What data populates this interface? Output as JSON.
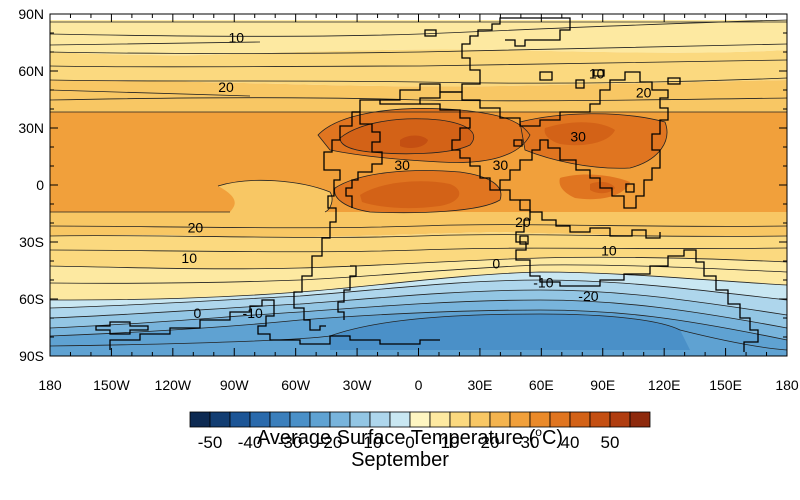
{
  "map": {
    "x_ticks": [
      "180",
      "150W",
      "120W",
      "90W",
      "60W",
      "30W",
      "0",
      "30E",
      "60E",
      "90E",
      "120E",
      "150E",
      "180"
    ],
    "y_ticks": [
      "90N",
      "60N",
      "30N",
      "0",
      "30S",
      "60S",
      "90S"
    ],
    "contour_labels": [
      {
        "text": "10",
        "lon": -89,
        "lat": 75
      },
      {
        "text": "20",
        "lon": -94,
        "lat": 49
      },
      {
        "text": "30",
        "lon": -8,
        "lat": 8
      },
      {
        "text": "30",
        "lon": 40,
        "lat": 8
      },
      {
        "text": "30",
        "lon": 78,
        "lat": 23
      },
      {
        "text": "10",
        "lon": 87,
        "lat": 56
      },
      {
        "text": "20",
        "lon": 110,
        "lat": 46
      },
      {
        "text": "20",
        "lon": -109,
        "lat": -25
      },
      {
        "text": "10",
        "lon": -112,
        "lat": -41
      },
      {
        "text": "20",
        "lon": 51,
        "lat": -22
      },
      {
        "text": "10",
        "lon": 93,
        "lat": -37
      },
      {
        "text": "0",
        "lon": 38,
        "lat": -44
      },
      {
        "text": "-10",
        "lon": 61,
        "lat": -54
      },
      {
        "text": "-20",
        "lon": 83,
        "lat": -61
      },
      {
        "text": "0",
        "lon": -108,
        "lat": -70
      },
      {
        "text": "-10",
        "lon": -81,
        "lat": -70
      }
    ]
  },
  "colorbar": {
    "levels": [
      -55,
      -50,
      -45,
      -40,
      -35,
      -30,
      -25,
      -20,
      -15,
      -10,
      -5,
      0,
      5,
      10,
      15,
      20,
      25,
      30,
      35,
      40,
      45,
      50,
      55
    ],
    "colors": [
      "#0d2a52",
      "#123d72",
      "#1c5596",
      "#2a6aac",
      "#3b7fbc",
      "#4a90c8",
      "#5fa2d2",
      "#78b4dc",
      "#93c6e4",
      "#aed6ec",
      "#c9e7f2",
      "#fff6c2",
      "#fde9a1",
      "#fbd97f",
      "#f8c764",
      "#f4b44f",
      "#f1a03b",
      "#ea8a2a",
      "#e07520",
      "#d36217",
      "#c44f12",
      "#b03d10",
      "#8e2a0d"
    ],
    "tick_labels": [
      "-50",
      "-40",
      "-30",
      "-20",
      "-10",
      "0",
      "10",
      "20",
      "30",
      "40",
      "50"
    ]
  },
  "title": {
    "main_prefix": "Average Surface Temperature (",
    "main_sup": "o",
    "main_suffix": "C)",
    "sub": "September"
  }
}
